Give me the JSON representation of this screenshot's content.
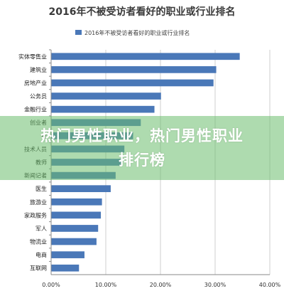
{
  "chart_data": {
    "type": "bar",
    "orientation": "horizontal",
    "title": "2016年不被受访者看好的职业或行业排名",
    "legend": {
      "label": "2016年不被受访者看好的职业或行业排名",
      "position": "top"
    },
    "series": [
      {
        "name": "2016年不被受访者看好的职业或行业排名",
        "color": "#4a78b8",
        "values": [
          34.5,
          30.2,
          29.7,
          20.1,
          18.9,
          16.4,
          15.0,
          13.4,
          12.8,
          11.8,
          10.9,
          9.3,
          9.1,
          8.6,
          8.3,
          6.1,
          5.1
        ]
      }
    ],
    "categories": [
      "实体零售业",
      "建筑业",
      "房地产业",
      "公务员",
      "金融行业",
      "创业者",
      "农",
      "技术人员",
      "教师",
      "新闻记者",
      "医生",
      "旅游业",
      "家政服务",
      "军人",
      "物流业",
      "电商",
      "互联网"
    ],
    "xlim": [
      0,
      40
    ],
    "xticks": [
      "0.00%",
      "10.00%",
      "20.00%",
      "30.00%",
      "40.00%"
    ],
    "grid": true
  },
  "overlay": {
    "text": "热门男性职业，热门男性职业排行榜"
  }
}
